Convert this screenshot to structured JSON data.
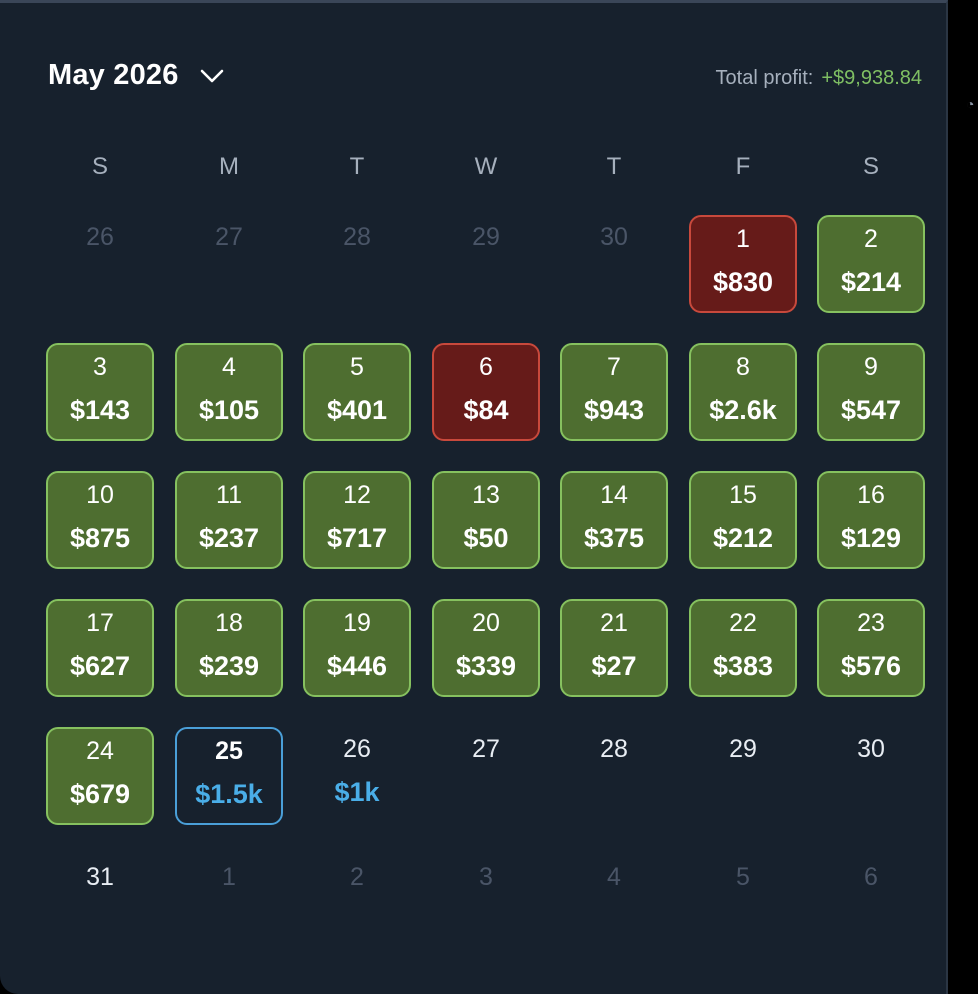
{
  "header": {
    "month_title": "May 2026",
    "profit_label": "Total profit:",
    "profit_value": "+$9,938.84"
  },
  "colors": {
    "background": "#17212d",
    "profit_positive": "#7fbf63",
    "green_cell": "#4e6e30",
    "red_cell": "#661b19",
    "today_border": "#4a9fd8",
    "projected_amount": "#4aaee8"
  },
  "weekdays": [
    "S",
    "M",
    "T",
    "W",
    "T",
    "F",
    "S"
  ],
  "weeks": [
    [
      {
        "day": "26",
        "status": "other"
      },
      {
        "day": "27",
        "status": "other"
      },
      {
        "day": "28",
        "status": "other"
      },
      {
        "day": "29",
        "status": "other"
      },
      {
        "day": "30",
        "status": "other"
      },
      {
        "day": "1",
        "amount": "$830",
        "status": "red"
      },
      {
        "day": "2",
        "amount": "$214",
        "status": "green"
      }
    ],
    [
      {
        "day": "3",
        "amount": "$143",
        "status": "green"
      },
      {
        "day": "4",
        "amount": "$105",
        "status": "green"
      },
      {
        "day": "5",
        "amount": "$401",
        "status": "green"
      },
      {
        "day": "6",
        "amount": "$84",
        "status": "red"
      },
      {
        "day": "7",
        "amount": "$943",
        "status": "green"
      },
      {
        "day": "8",
        "amount": "$2.6k",
        "status": "green"
      },
      {
        "day": "9",
        "amount": "$547",
        "status": "green"
      }
    ],
    [
      {
        "day": "10",
        "amount": "$875",
        "status": "green"
      },
      {
        "day": "11",
        "amount": "$237",
        "status": "green"
      },
      {
        "day": "12",
        "amount": "$717",
        "status": "green"
      },
      {
        "day": "13",
        "amount": "$50",
        "status": "green"
      },
      {
        "day": "14",
        "amount": "$375",
        "status": "green"
      },
      {
        "day": "15",
        "amount": "$212",
        "status": "green"
      },
      {
        "day": "16",
        "amount": "$129",
        "status": "green"
      }
    ],
    [
      {
        "day": "17",
        "amount": "$627",
        "status": "green"
      },
      {
        "day": "18",
        "amount": "$239",
        "status": "green"
      },
      {
        "day": "19",
        "amount": "$446",
        "status": "green"
      },
      {
        "day": "20",
        "amount": "$339",
        "status": "green"
      },
      {
        "day": "21",
        "amount": "$27",
        "status": "green"
      },
      {
        "day": "22",
        "amount": "$383",
        "status": "green"
      },
      {
        "day": "23",
        "amount": "$576",
        "status": "green"
      }
    ],
    [
      {
        "day": "24",
        "amount": "$679",
        "status": "green"
      },
      {
        "day": "25",
        "amount": "$1.5k",
        "status": "today"
      },
      {
        "day": "26",
        "amount": "$1k",
        "status": "future"
      },
      {
        "day": "27",
        "status": "plain"
      },
      {
        "day": "28",
        "status": "plain"
      },
      {
        "day": "29",
        "status": "plain"
      },
      {
        "day": "30",
        "status": "plain"
      }
    ],
    [
      {
        "day": "31",
        "status": "plain"
      },
      {
        "day": "1",
        "status": "other"
      },
      {
        "day": "2",
        "status": "other"
      },
      {
        "day": "3",
        "status": "other"
      },
      {
        "day": "4",
        "status": "other"
      },
      {
        "day": "5",
        "status": "other"
      },
      {
        "day": "6",
        "status": "other"
      }
    ]
  ]
}
